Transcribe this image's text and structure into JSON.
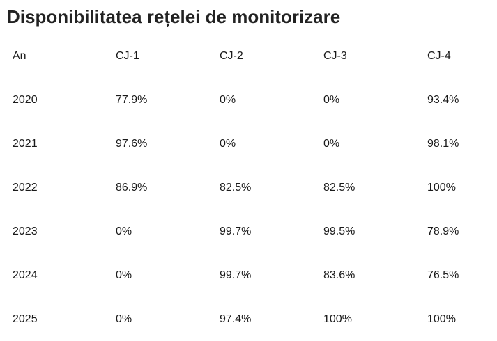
{
  "title": "Disponibilitatea rețelei de monitorizare",
  "table": {
    "headers": [
      "An",
      "CJ-1",
      "CJ-2",
      "CJ-3",
      "CJ-4"
    ],
    "rows": [
      [
        "2020",
        "77.9%",
        "0%",
        "0%",
        "93.4%"
      ],
      [
        "2021",
        "97.6%",
        "0%",
        "0%",
        "98.1%"
      ],
      [
        "2022",
        "86.9%",
        "82.5%",
        "82.5%",
        "100%"
      ],
      [
        "2023",
        "0%",
        "99.7%",
        "99.5%",
        "78.9%"
      ],
      [
        "2024",
        "0%",
        "99.7%",
        "83.6%",
        "76.5%"
      ],
      [
        "2025",
        "0%",
        "97.4%",
        "100%",
        "100%"
      ]
    ]
  }
}
